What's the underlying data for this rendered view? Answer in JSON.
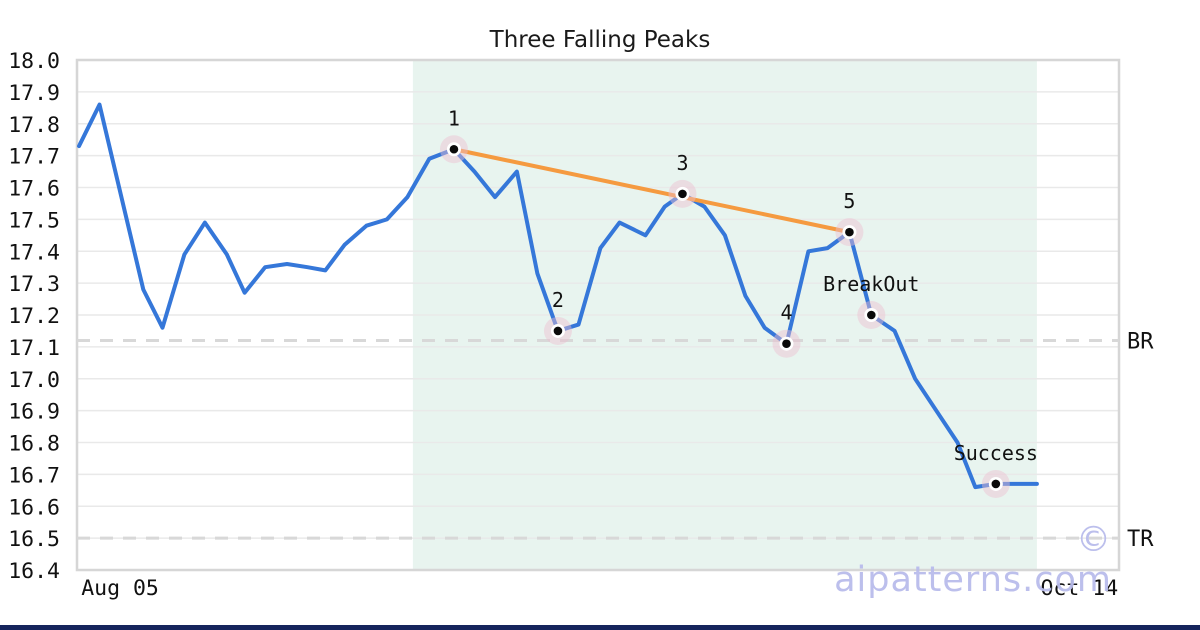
{
  "page": {
    "title": "Three Falling Peaks",
    "watermark": "© aipatterns.com"
  },
  "colors": {
    "price_line": "#3577d9",
    "trendline": "#f59a40",
    "shade": "#e8f4ef",
    "grid": "#e9e9e9",
    "axis_border": "#d6d6d6",
    "dashed_level": "#d8d8d8",
    "marker_halo": "rgba(238,190,208,0.45)",
    "marker_ring": "#ffffff",
    "marker_dot": "#0a0a0a",
    "tick_text": "#111111",
    "watermark": "#b9bcec",
    "footer_bar": "#15245c"
  },
  "chart_data": {
    "type": "line",
    "title": "Three Falling Peaks",
    "x_axis": {
      "domain_days": [
        0,
        76
      ],
      "ticks": [
        {
          "label": "Aug 05",
          "day": 3.0
        },
        {
          "label": "Oct 14",
          "day": 73.1
        }
      ]
    },
    "y_axis": {
      "min": 16.4,
      "max": 18.0,
      "step": 0.1,
      "tick_format": "fixed1"
    },
    "grid": true,
    "legend": false,
    "series": [
      {
        "name": "price",
        "points": [
          [
            0,
            17.73
          ],
          [
            1.5,
            17.86
          ],
          [
            4.7,
            17.28
          ],
          [
            6.1,
            17.16
          ],
          [
            7.7,
            17.39
          ],
          [
            9.2,
            17.49
          ],
          [
            10.8,
            17.39
          ],
          [
            12.1,
            17.27
          ],
          [
            13.6,
            17.35
          ],
          [
            15.2,
            17.36
          ],
          [
            16.7,
            17.35
          ],
          [
            18.0,
            17.34
          ],
          [
            19.4,
            17.42
          ],
          [
            21.0,
            17.48
          ],
          [
            22.5,
            17.5
          ],
          [
            24.0,
            17.57
          ],
          [
            25.6,
            17.69
          ],
          [
            27.4,
            17.72
          ],
          [
            28.9,
            17.65
          ],
          [
            30.4,
            17.57
          ],
          [
            32.0,
            17.65
          ],
          [
            33.5,
            17.33
          ],
          [
            35.0,
            17.15
          ],
          [
            36.5,
            17.17
          ],
          [
            38.1,
            17.41
          ],
          [
            39.5,
            17.49
          ],
          [
            41.4,
            17.45
          ],
          [
            42.8,
            17.54
          ],
          [
            44.1,
            17.58
          ],
          [
            45.7,
            17.54
          ],
          [
            47.2,
            17.45
          ],
          [
            48.7,
            17.26
          ],
          [
            50.1,
            17.16
          ],
          [
            51.7,
            17.11
          ],
          [
            53.3,
            17.4
          ],
          [
            54.7,
            17.41
          ],
          [
            56.3,
            17.46
          ],
          [
            57.9,
            17.2
          ],
          [
            59.6,
            17.15
          ],
          [
            61.1,
            17.0
          ],
          [
            62.8,
            16.89
          ],
          [
            64.2,
            16.8
          ],
          [
            65.5,
            16.66
          ],
          [
            67.0,
            16.67
          ],
          [
            68.5,
            16.67
          ],
          [
            70,
            16.67
          ]
        ]
      }
    ],
    "markers": [
      {
        "label": "1",
        "day": 27.4,
        "value": 17.72
      },
      {
        "label": "2",
        "day": 35.0,
        "value": 17.15
      },
      {
        "label": "3",
        "day": 44.1,
        "value": 17.58
      },
      {
        "label": "4",
        "day": 51.7,
        "value": 17.11
      },
      {
        "label": "5",
        "day": 56.3,
        "value": 17.46
      },
      {
        "label": "BreakOut",
        "day": 57.9,
        "value": 17.2
      },
      {
        "label": "Success",
        "day": 67.0,
        "value": 16.67
      }
    ],
    "trendline": {
      "from_marker": "1",
      "to_marker": "5"
    },
    "hlines": [
      {
        "label": "BR",
        "value": 17.12
      },
      {
        "label": "TR",
        "value": 16.5
      }
    ],
    "shaded_region": {
      "start_day": 24.4,
      "end_day": 70
    }
  }
}
